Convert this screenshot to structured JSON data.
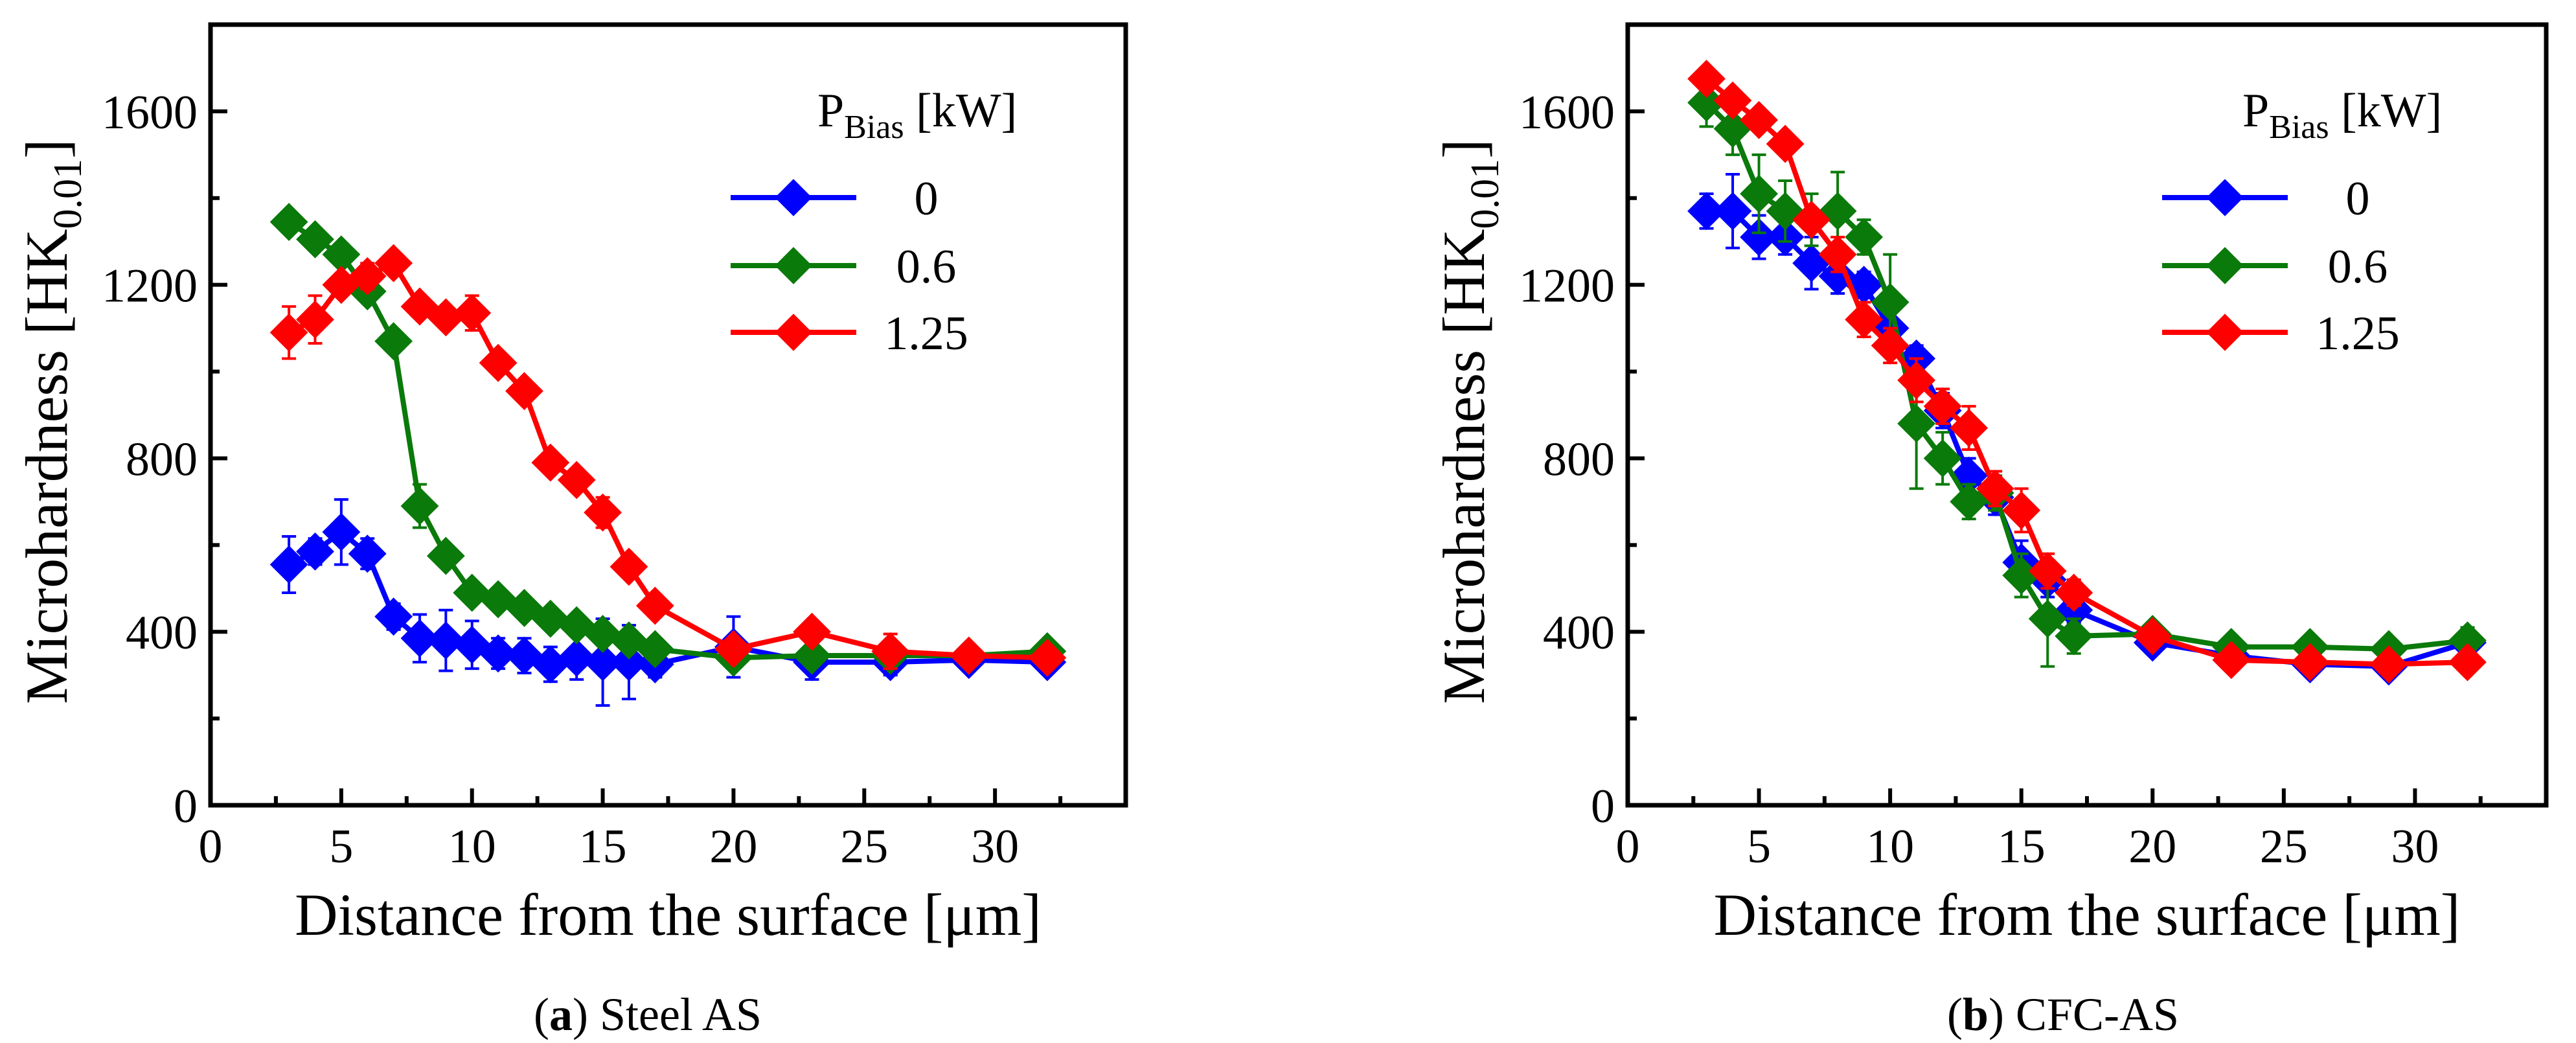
{
  "chart_data": [
    {
      "type": "line",
      "panel_label": "a",
      "caption_text": " Steel AS",
      "xlabel": "Distance from the surface [μm]",
      "ylabel_main": "Microhardness [HK",
      "ylabel_sub": "0.01",
      "ylabel_close": "]",
      "xlim": [
        0,
        35
      ],
      "ylim": [
        0,
        1800
      ],
      "xticks": [
        "0",
        "5",
        "10",
        "15",
        "20",
        "25",
        "30"
      ],
      "yticks": [
        "0",
        "400",
        "800",
        "1200",
        "1600"
      ],
      "legend": {
        "title_main": "P",
        "title_sub": "Bias",
        "title_unit": " [kW]",
        "position": "top-right"
      },
      "series": [
        {
          "name": "0",
          "color": "#0000ff",
          "x": [
            3,
            4,
            5,
            6,
            7,
            8,
            9,
            10,
            11,
            12,
            13,
            14,
            15,
            16,
            17,
            20,
            23,
            26,
            29,
            32
          ],
          "y": [
            555,
            585,
            630,
            580,
            435,
            385,
            380,
            370,
            350,
            345,
            325,
            340,
            330,
            330,
            325,
            365,
            330,
            330,
            335,
            330
          ],
          "err": [
            65,
            30,
            75,
            35,
            30,
            55,
            70,
            55,
            35,
            40,
            40,
            50,
            100,
            85,
            30,
            70,
            40,
            30,
            25,
            20
          ]
        },
        {
          "name": "0.6",
          "color": "#0a7a0a",
          "x": [
            3,
            4,
            5,
            6,
            7,
            8,
            9,
            10,
            11,
            12,
            13,
            14,
            15,
            16,
            17,
            20,
            23,
            26,
            29,
            32
          ],
          "y": [
            1345,
            1305,
            1270,
            1185,
            1070,
            690,
            575,
            490,
            475,
            455,
            430,
            415,
            395,
            380,
            360,
            340,
            345,
            345,
            345,
            355
          ],
          "err": [
            15,
            15,
            15,
            15,
            15,
            50,
            20,
            15,
            15,
            15,
            15,
            15,
            25,
            15,
            15,
            15,
            15,
            15,
            15,
            15
          ]
        },
        {
          "name": "1.25",
          "color": "#ff0000",
          "x": [
            3,
            4,
            5,
            6,
            7,
            8,
            9,
            10,
            11,
            12,
            13,
            14,
            15,
            16,
            17,
            20,
            23,
            26,
            29,
            32
          ],
          "y": [
            1090,
            1120,
            1200,
            1220,
            1250,
            1150,
            1125,
            1135,
            1020,
            955,
            790,
            750,
            675,
            550,
            460,
            360,
            400,
            355,
            345,
            340
          ],
          "err": [
            60,
            55,
            20,
            30,
            20,
            20,
            15,
            40,
            20,
            20,
            20,
            25,
            35,
            15,
            25,
            20,
            20,
            40,
            25,
            20
          ]
        }
      ]
    },
    {
      "type": "line",
      "panel_label": "b",
      "caption_text": " CFC-AS",
      "xlabel": "Distance from the surface [μm]",
      "ylabel_main": "Microhardness [HK",
      "ylabel_sub": "0.01",
      "ylabel_close": "]",
      "xlim": [
        0,
        35
      ],
      "ylim": [
        0,
        1800
      ],
      "xticks": [
        "0",
        "5",
        "10",
        "15",
        "20",
        "25",
        "30"
      ],
      "yticks": [
        "0",
        "400",
        "800",
        "1200",
        "1600"
      ],
      "legend": {
        "title_main": "P",
        "title_sub": "Bias",
        "title_unit": " [kW]",
        "position": "top-right"
      },
      "series": [
        {
          "name": "0",
          "color": "#0000ff",
          "x": [
            3,
            4,
            5,
            6,
            7,
            8,
            9,
            10,
            11,
            12,
            13,
            14,
            15,
            16,
            17,
            20,
            23,
            26,
            29,
            32
          ],
          "y": [
            1370,
            1370,
            1310,
            1310,
            1250,
            1220,
            1200,
            1100,
            1030,
            910,
            760,
            710,
            560,
            520,
            450,
            375,
            345,
            325,
            320,
            375
          ],
          "err": [
            40,
            85,
            50,
            40,
            60,
            40,
            30,
            40,
            30,
            40,
            40,
            40,
            50,
            40,
            30,
            25,
            20,
            20,
            20,
            25
          ]
        },
        {
          "name": "0.6",
          "color": "#0a7a0a",
          "x": [
            3,
            4,
            5,
            6,
            7,
            8,
            9,
            10,
            11,
            12,
            13,
            14,
            15,
            16,
            17,
            20,
            23,
            26,
            29,
            32
          ],
          "y": [
            1620,
            1560,
            1410,
            1370,
            1350,
            1370,
            1310,
            1160,
            880,
            800,
            700,
            720,
            530,
            430,
            390,
            395,
            365,
            365,
            360,
            380
          ],
          "err": [
            55,
            60,
            90,
            70,
            60,
            90,
            40,
            110,
            150,
            60,
            40,
            40,
            50,
            110,
            40,
            20,
            20,
            20,
            20,
            30
          ]
        },
        {
          "name": "1.25",
          "color": "#ff0000",
          "x": [
            3,
            4,
            5,
            6,
            7,
            8,
            9,
            10,
            11,
            12,
            13,
            14,
            15,
            16,
            17,
            20,
            23,
            26,
            29,
            32
          ],
          "y": [
            1675,
            1625,
            1580,
            1525,
            1350,
            1270,
            1120,
            1060,
            980,
            920,
            870,
            730,
            680,
            540,
            490,
            390,
            335,
            330,
            325,
            330
          ],
          "err": [
            20,
            20,
            20,
            20,
            20,
            40,
            40,
            40,
            50,
            40,
            50,
            40,
            50,
            40,
            30,
            20,
            20,
            20,
            20,
            20
          ]
        }
      ]
    }
  ]
}
